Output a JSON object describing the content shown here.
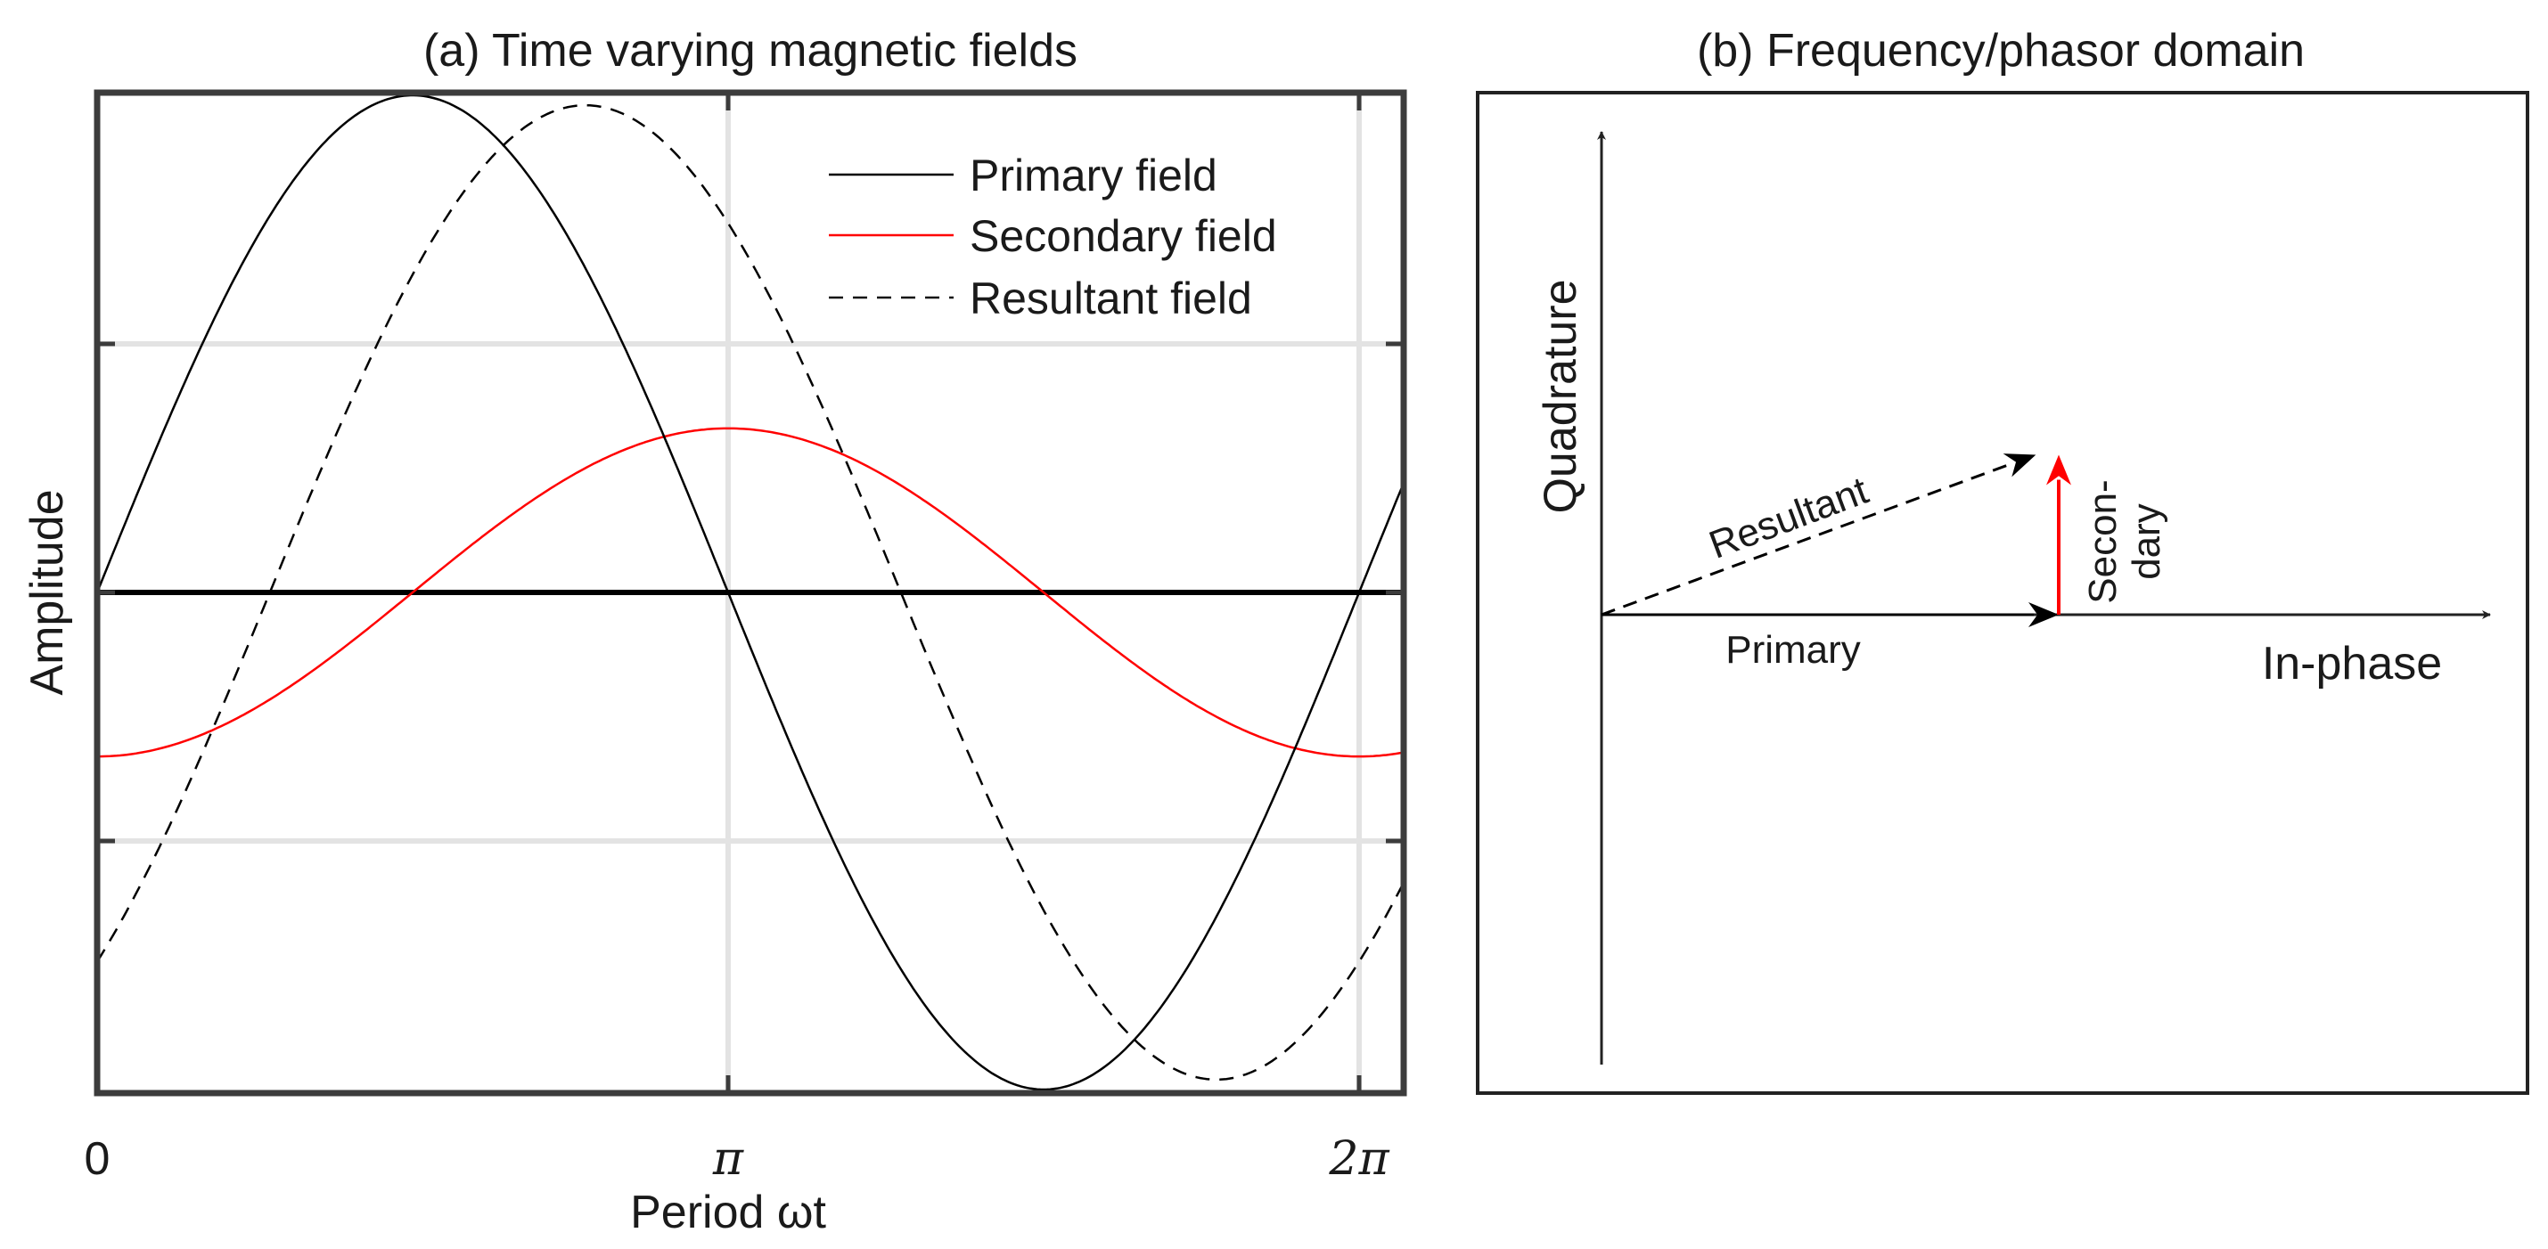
{
  "chart_data": [
    {
      "type": "line",
      "panel": "a",
      "title": "(a) Time varying magnetic fields",
      "xlabel": "Period ωt",
      "ylabel": "Amplitude",
      "xlim": [
        0,
        6.5
      ],
      "ylim": [
        -1.0,
        1.0
      ],
      "xticks": [
        {
          "value": 0,
          "label": "0"
        },
        {
          "value": 3.14159,
          "label": "π"
        },
        {
          "value": 6.28318,
          "label": "2π"
        }
      ],
      "yticks": [
        -0.5,
        0,
        0.5
      ],
      "grid": true,
      "legend_position": "top-right",
      "series": [
        {
          "name": "Primary field",
          "style": "solid",
          "color": "#000000",
          "function": "sin(x)",
          "amplitude": 1.0,
          "phase": 0.0
        },
        {
          "name": "Secondary field",
          "style": "solid",
          "color": "#ff0000",
          "function": "-0.33*cos(x)",
          "amplitude": 0.33,
          "phase": -1.5708
        },
        {
          "name": "Resultant field",
          "style": "dashed",
          "color": "#000000",
          "function": "0.98*sin(x-0.86)",
          "amplitude": 0.98,
          "phase": -0.86
        }
      ],
      "baseline": {
        "y": 0,
        "color": "#000000"
      }
    },
    {
      "type": "phasor",
      "panel": "b",
      "title": "(b) Frequency/phasor domain",
      "xlabel": "In-phase",
      "ylabel": "Quadrature",
      "vectors": [
        {
          "name": "Primary",
          "from": [
            0,
            0
          ],
          "to": [
            1.0,
            0
          ],
          "color": "#000000",
          "style": "solid"
        },
        {
          "name": "Secondary",
          "label_lines": [
            "Secon-",
            "dary"
          ],
          "from": [
            1.0,
            0
          ],
          "to": [
            1.0,
            0.35
          ],
          "color": "#ff0000",
          "style": "solid"
        },
        {
          "name": "Resultant",
          "from": [
            0,
            0
          ],
          "to": [
            0.95,
            0.35
          ],
          "color": "#000000",
          "style": "dashed"
        }
      ]
    }
  ]
}
